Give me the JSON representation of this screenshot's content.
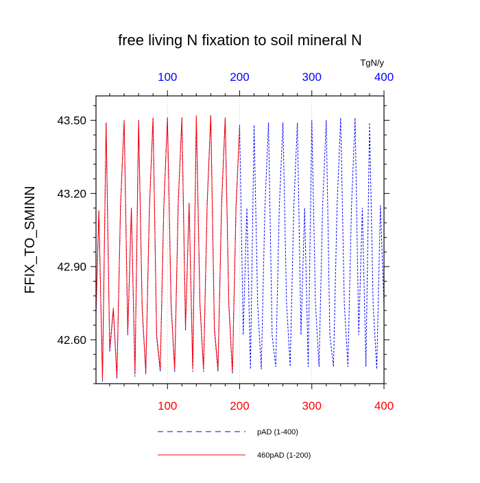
{
  "chart_data": {
    "type": "line",
    "title": "free living N fixation to soil mineral N",
    "ylabel": "FFIX_TO_SMINN",
    "units": "TgN/y",
    "xlim": [
      1,
      400
    ],
    "ylim": [
      42.42,
      43.6
    ],
    "x_ticks": [
      100,
      200,
      300,
      400
    ],
    "x_tick_labels": [
      "100",
      "200",
      "300",
      "400"
    ],
    "y_ticks": [
      42.6,
      42.9,
      43.2,
      43.5
    ],
    "y_tick_labels": [
      "42.60",
      "42.90",
      "43.20",
      "43.50"
    ],
    "grid": "vertical-dotted",
    "colors": {
      "series_pAD": "#0000ff",
      "series_460pAD": "#ff0000",
      "bottom_ticks": "#ff0000",
      "top_ticks": "#0000ff",
      "axes": "#000000"
    },
    "series": [
      {
        "name": "pAD (1-400)",
        "color": "#0000ff",
        "style": "dashed",
        "x": [
          1,
          5,
          10,
          15,
          20,
          25,
          30,
          35,
          40,
          45,
          50,
          55,
          60,
          65,
          70,
          75,
          80,
          85,
          90,
          95,
          100,
          105,
          110,
          115,
          120,
          125,
          130,
          135,
          140,
          145,
          150,
          155,
          160,
          165,
          170,
          175,
          180,
          185,
          190,
          195,
          200,
          205,
          210,
          215,
          220,
          225,
          230,
          235,
          240,
          245,
          250,
          255,
          260,
          265,
          270,
          275,
          280,
          285,
          290,
          295,
          300,
          305,
          310,
          315,
          320,
          325,
          330,
          335,
          340,
          345,
          350,
          355,
          360,
          365,
          370,
          375,
          380,
          385,
          390,
          395,
          400
        ],
        "values": [
          42.7,
          43.13,
          42.43,
          43.49,
          42.55,
          42.72,
          42.44,
          43.15,
          43.5,
          42.62,
          43.14,
          42.45,
          43.5,
          42.72,
          42.46,
          43.14,
          43.51,
          42.61,
          42.47,
          43.15,
          43.51,
          42.74,
          42.47,
          43.16,
          43.51,
          42.64,
          43.16,
          42.47,
          43.51,
          42.74,
          42.47,
          43.15,
          43.52,
          42.64,
          42.47,
          43.15,
          43.51,
          42.74,
          42.46,
          43.14,
          43.48,
          42.62,
          43.14,
          42.48,
          43.48,
          42.74,
          42.48,
          43.14,
          43.49,
          42.62,
          42.49,
          43.15,
          43.49,
          42.75,
          42.49,
          43.14,
          43.49,
          42.62,
          43.14,
          42.49,
          43.5,
          42.75,
          42.49,
          43.15,
          43.5,
          42.62,
          42.49,
          43.15,
          43.51,
          42.75,
          42.49,
          43.15,
          43.51,
          42.62,
          43.14,
          42.49,
          43.49,
          42.74,
          42.48,
          43.15,
          42.74
        ]
      },
      {
        "name": "460pAD (1-200)",
        "color": "#ff0000",
        "style": "solid",
        "x": [
          1,
          5,
          10,
          15,
          20,
          25,
          30,
          35,
          40,
          45,
          50,
          55,
          60,
          65,
          70,
          75,
          80,
          85,
          90,
          95,
          100,
          105,
          110,
          115,
          120,
          125,
          130,
          135,
          140,
          145,
          150,
          155,
          160,
          165,
          170,
          175,
          180,
          185,
          190,
          195,
          200
        ],
        "values": [
          42.72,
          43.13,
          42.44,
          43.49,
          42.56,
          42.73,
          42.45,
          43.15,
          43.5,
          42.63,
          43.14,
          42.46,
          43.5,
          42.73,
          42.47,
          43.14,
          43.51,
          42.62,
          42.48,
          43.15,
          43.51,
          42.75,
          42.48,
          43.17,
          43.51,
          42.65,
          43.16,
          42.48,
          43.52,
          42.75,
          42.48,
          43.16,
          43.52,
          42.65,
          42.48,
          43.16,
          43.51,
          42.75,
          42.47,
          43.15,
          43.47
        ]
      }
    ],
    "legend": {
      "placement": "bottom",
      "entries": [
        {
          "label": "pAD (1-400)",
          "color": "#0000ff",
          "style": "dashed"
        },
        {
          "label": "460pAD (1-200)",
          "color": "#ff0000",
          "style": "solid"
        }
      ]
    }
  }
}
